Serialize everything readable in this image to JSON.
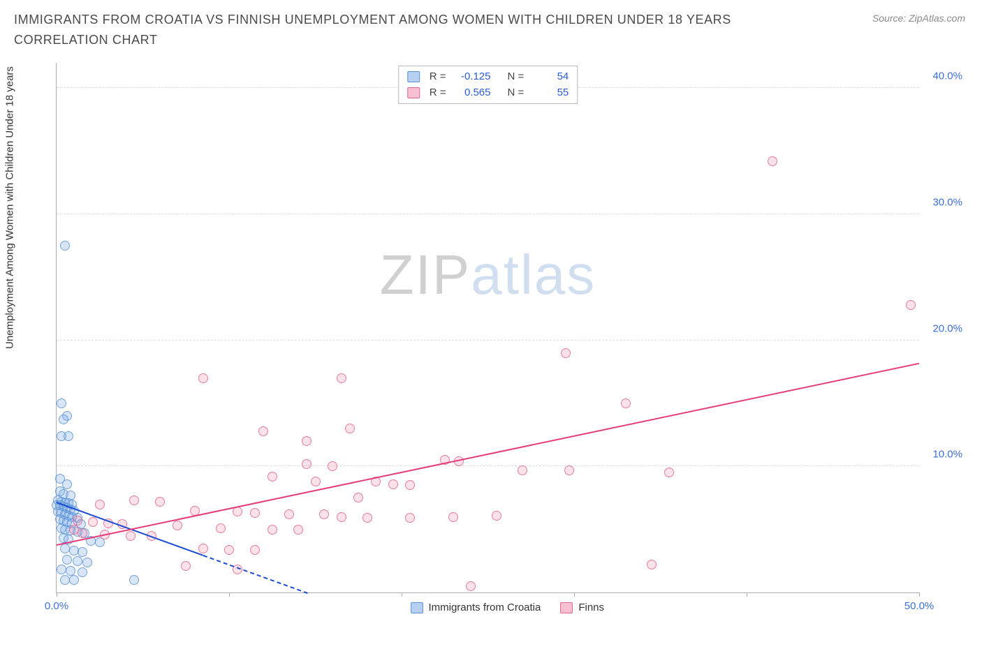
{
  "header": {
    "title": "IMMIGRANTS FROM CROATIA VS FINNISH UNEMPLOYMENT AMONG WOMEN WITH CHILDREN UNDER 18 YEARS CORRELATION CHART",
    "source_prefix": "Source: ",
    "source_name": "ZipAtlas.com"
  },
  "watermark": {
    "part1": "ZIP",
    "part2": "atlas"
  },
  "chart": {
    "type": "scatter",
    "ylabel": "Unemployment Among Women with Children Under 18 years",
    "background_color": "#ffffff",
    "grid_color": "#dcdcdc",
    "axis_color": "#aab",
    "xlim": [
      0,
      50
    ],
    "ylim": [
      0,
      42
    ],
    "yticks": [
      10,
      20,
      30,
      40
    ],
    "ytick_labels": [
      "10.0%",
      "20.0%",
      "30.0%",
      "40.0%"
    ],
    "xticks": [
      0,
      10,
      20,
      30,
      40,
      50
    ],
    "xtick_labels": [
      "0.0%",
      "",
      "",
      "",
      "",
      "50.0%"
    ],
    "label_color": "#3b6fd6",
    "label_fontsize": 15,
    "series": [
      {
        "name": "Immigrants from Croatia",
        "fill": "rgba(120,170,230,0.35)",
        "stroke": "#5b93d6",
        "trend_color": "#1a4bd0",
        "trend": {
          "x1": 0,
          "y1": 7.2,
          "x2": 8.5,
          "y2": 3.0,
          "dash_to_x": 15
        },
        "points": [
          [
            0.5,
            27.5
          ],
          [
            0.3,
            15.0
          ],
          [
            0.6,
            14.0
          ],
          [
            0.4,
            13.7
          ],
          [
            0.3,
            12.4
          ],
          [
            0.7,
            12.4
          ],
          [
            0.2,
            9.0
          ],
          [
            0.6,
            8.6
          ],
          [
            0.2,
            8.0
          ],
          [
            0.4,
            7.8
          ],
          [
            0.8,
            7.7
          ],
          [
            0.1,
            7.3
          ],
          [
            0.3,
            7.2
          ],
          [
            0.5,
            7.1
          ],
          [
            0.7,
            7.1
          ],
          [
            0.9,
            7.0
          ],
          [
            0.0,
            6.9
          ],
          [
            0.2,
            6.9
          ],
          [
            0.4,
            6.8
          ],
          [
            0.6,
            6.7
          ],
          [
            0.8,
            6.6
          ],
          [
            1.0,
            6.5
          ],
          [
            0.1,
            6.4
          ],
          [
            0.3,
            6.3
          ],
          [
            0.5,
            6.2
          ],
          [
            0.7,
            6.1
          ],
          [
            0.9,
            6.0
          ],
          [
            1.2,
            5.9
          ],
          [
            0.2,
            5.8
          ],
          [
            0.4,
            5.7
          ],
          [
            0.6,
            5.6
          ],
          [
            0.9,
            5.5
          ],
          [
            1.4,
            5.4
          ],
          [
            0.3,
            5.1
          ],
          [
            0.5,
            5.0
          ],
          [
            0.8,
            4.9
          ],
          [
            1.2,
            4.8
          ],
          [
            1.6,
            4.7
          ],
          [
            0.4,
            4.3
          ],
          [
            0.7,
            4.2
          ],
          [
            2.0,
            4.1
          ],
          [
            2.5,
            4.0
          ],
          [
            0.5,
            3.5
          ],
          [
            1.0,
            3.3
          ],
          [
            1.5,
            3.2
          ],
          [
            0.6,
            2.6
          ],
          [
            1.2,
            2.5
          ],
          [
            1.8,
            2.4
          ],
          [
            0.3,
            1.8
          ],
          [
            0.8,
            1.7
          ],
          [
            1.5,
            1.6
          ],
          [
            0.5,
            1.0
          ],
          [
            1.0,
            1.0
          ],
          [
            4.5,
            1.0
          ]
        ]
      },
      {
        "name": "Finns",
        "fill": "rgba(240,140,170,0.30)",
        "stroke": "#e2668f",
        "trend_color": "#e53b7a",
        "trend": {
          "x1": 0,
          "y1": 3.8,
          "x2": 50,
          "y2": 18.2
        },
        "points": [
          [
            41.5,
            34.2
          ],
          [
            49.5,
            22.8
          ],
          [
            29.5,
            19.0
          ],
          [
            8.5,
            17.0
          ],
          [
            16.5,
            17.0
          ],
          [
            33.0,
            15.0
          ],
          [
            12.0,
            12.8
          ],
          [
            17.0,
            13.0
          ],
          [
            14.5,
            12.0
          ],
          [
            22.5,
            10.5
          ],
          [
            23.3,
            10.4
          ],
          [
            14.5,
            10.2
          ],
          [
            16.0,
            10.0
          ],
          [
            27.0,
            9.7
          ],
          [
            29.7,
            9.7
          ],
          [
            35.5,
            9.5
          ],
          [
            12.5,
            9.2
          ],
          [
            15.0,
            8.8
          ],
          [
            18.5,
            8.8
          ],
          [
            19.5,
            8.6
          ],
          [
            20.5,
            8.5
          ],
          [
            17.5,
            7.5
          ],
          [
            4.5,
            7.3
          ],
          [
            6.0,
            7.2
          ],
          [
            2.5,
            7.0
          ],
          [
            8.0,
            6.5
          ],
          [
            10.5,
            6.4
          ],
          [
            11.5,
            6.3
          ],
          [
            13.5,
            6.2
          ],
          [
            15.5,
            6.2
          ],
          [
            25.5,
            6.1
          ],
          [
            16.5,
            6.0
          ],
          [
            18.0,
            5.9
          ],
          [
            20.5,
            5.9
          ],
          [
            23.0,
            6.0
          ],
          [
            1.2,
            5.7
          ],
          [
            2.1,
            5.6
          ],
          [
            3.0,
            5.5
          ],
          [
            3.8,
            5.4
          ],
          [
            7.0,
            5.3
          ],
          [
            9.5,
            5.1
          ],
          [
            12.5,
            5.0
          ],
          [
            14.0,
            5.0
          ],
          [
            1.5,
            4.7
          ],
          [
            2.8,
            4.6
          ],
          [
            4.3,
            4.5
          ],
          [
            5.5,
            4.5
          ],
          [
            8.5,
            3.5
          ],
          [
            10.0,
            3.4
          ],
          [
            11.5,
            3.4
          ],
          [
            34.5,
            2.2
          ],
          [
            7.5,
            2.1
          ],
          [
            10.5,
            1.8
          ],
          [
            24.0,
            0.5
          ],
          [
            1.0,
            5.0
          ]
        ]
      }
    ],
    "stats": [
      {
        "swatch_fill": "rgba(120,170,230,0.55)",
        "swatch_stroke": "#5b93d6",
        "r_label": "R =",
        "r": "-0.125",
        "n_label": "N =",
        "n": "54"
      },
      {
        "swatch_fill": "rgba(240,140,170,0.55)",
        "swatch_stroke": "#e2668f",
        "r_label": "R =",
        "r": "0.565",
        "n_label": "N =",
        "n": "55"
      }
    ],
    "legend": [
      {
        "swatch_fill": "rgba(120,170,230,0.55)",
        "swatch_stroke": "#5b93d6",
        "label": "Immigrants from Croatia"
      },
      {
        "swatch_fill": "rgba(240,140,170,0.55)",
        "swatch_stroke": "#e2668f",
        "label": "Finns"
      }
    ]
  }
}
